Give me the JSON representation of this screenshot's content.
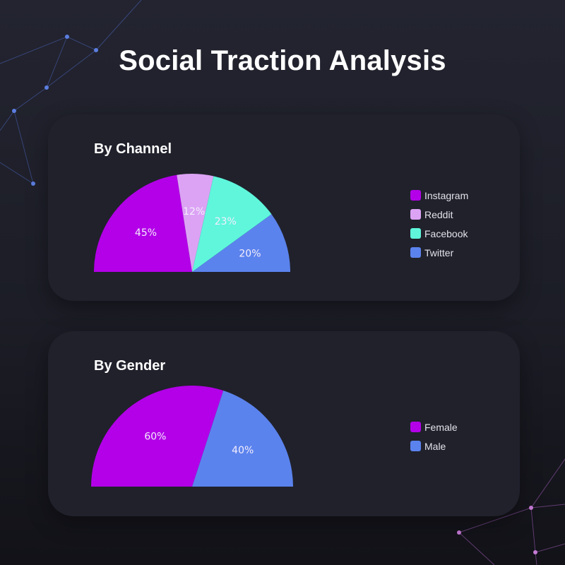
{
  "page": {
    "title": "Social Traction Analysis"
  },
  "colors": {
    "instagram": "#b300e8",
    "reddit": "#dca3f5",
    "facebook": "#5ff6dc",
    "twitter": "#5b83ee",
    "female": "#b300e8",
    "male": "#5b83ee",
    "card_bg": "#20212b",
    "network_blue": "#5b7ee0",
    "network_pink": "#c67ad6"
  },
  "chart_data": [
    {
      "id": "channel",
      "type": "pie",
      "subtype": "semicircle",
      "title": "By Channel",
      "categories": [
        "Instagram",
        "Reddit",
        "Facebook",
        "Twitter"
      ],
      "values": [
        45,
        12,
        23,
        20
      ],
      "value_labels": [
        "45%",
        "12%",
        "23%",
        "20%"
      ],
      "colors": [
        "#b300e8",
        "#dca3f5",
        "#5ff6dc",
        "#5b83ee"
      ],
      "legend": "right"
    },
    {
      "id": "gender",
      "type": "pie",
      "subtype": "semicircle",
      "title": "By Gender",
      "categories": [
        "Female",
        "Male"
      ],
      "values": [
        60,
        40
      ],
      "value_labels": [
        "60%",
        "40%"
      ],
      "colors": [
        "#b300e8",
        "#5b83ee"
      ],
      "legend": "right"
    }
  ]
}
